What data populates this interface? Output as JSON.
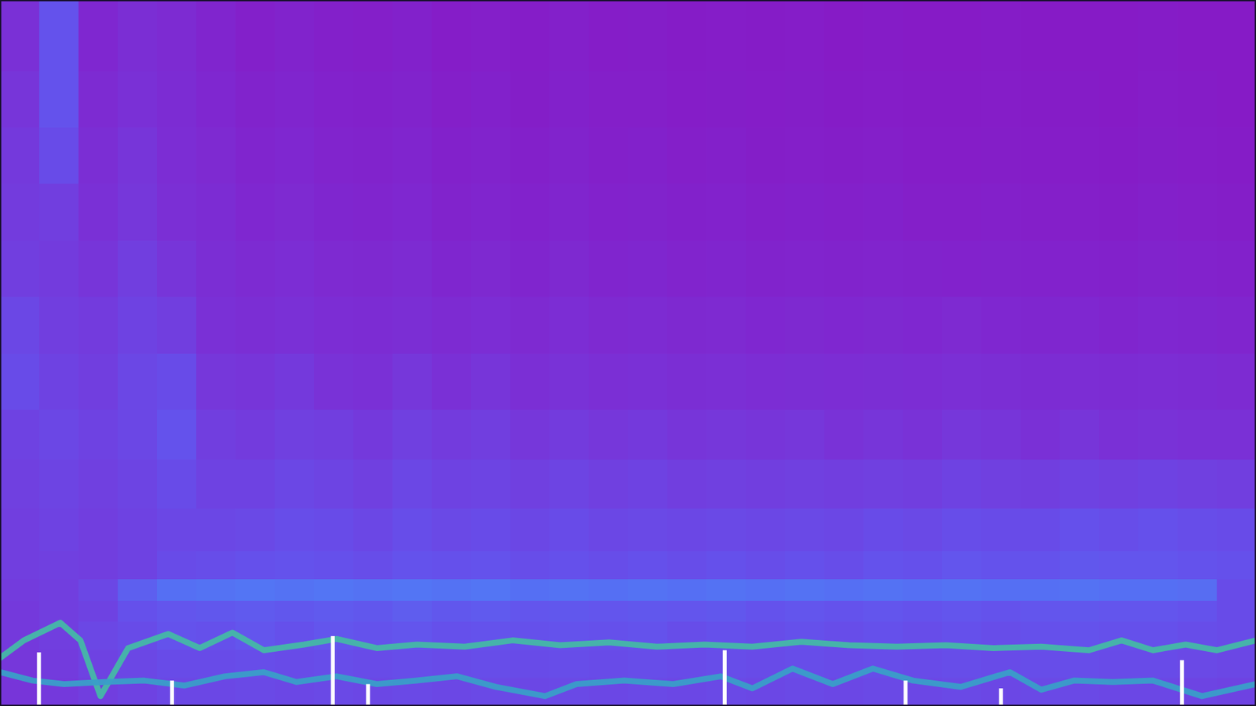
{
  "chart_data": {
    "type": "spectrogram",
    "xlim": [
      0,
      100
    ],
    "ylim": [
      0,
      100
    ],
    "zlim": [
      0,
      1
    ],
    "tick_labels": false,
    "x_bins": [
      0,
      3.125,
      6.25,
      9.375,
      12.5,
      15.625,
      18.75,
      21.875,
      25,
      28.125,
      31.25,
      34.375,
      37.5,
      40.625,
      43.75,
      46.875,
      50,
      53.125,
      56.25,
      59.375,
      62.5,
      65.625,
      68.75,
      71.875,
      75,
      78.125,
      81.25,
      84.375,
      87.5,
      90.625,
      93.75,
      96.875,
      100
    ],
    "y_bins": [
      0,
      4,
      8,
      12,
      15,
      18,
      22,
      28,
      35,
      42,
      50,
      58,
      66,
      74,
      82,
      90,
      100
    ],
    "cells": [
      [
        0.32,
        0.34,
        0.36,
        0.38,
        0.4,
        0.4,
        0.41,
        0.4,
        0.41,
        0.4,
        0.41,
        0.4,
        0.41,
        0.4,
        0.41,
        0.4,
        0.41,
        0.4,
        0.41,
        0.4,
        0.41,
        0.4,
        0.41,
        0.4,
        0.41,
        0.4,
        0.41,
        0.41,
        0.4,
        0.4,
        0.39,
        0.38
      ],
      [
        0.33,
        0.35,
        0.38,
        0.4,
        0.42,
        0.42,
        0.43,
        0.42,
        0.43,
        0.42,
        0.43,
        0.42,
        0.43,
        0.42,
        0.43,
        0.42,
        0.43,
        0.42,
        0.43,
        0.42,
        0.43,
        0.42,
        0.43,
        0.42,
        0.43,
        0.42,
        0.43,
        0.43,
        0.42,
        0.42,
        0.41,
        0.4
      ],
      [
        0.34,
        0.36,
        0.4,
        0.42,
        0.45,
        0.44,
        0.46,
        0.44,
        0.46,
        0.45,
        0.46,
        0.44,
        0.45,
        0.44,
        0.45,
        0.44,
        0.45,
        0.43,
        0.44,
        0.43,
        0.44,
        0.43,
        0.44,
        0.43,
        0.44,
        0.43,
        0.44,
        0.45,
        0.44,
        0.44,
        0.43,
        0.42
      ],
      [
        0.34,
        0.36,
        0.38,
        0.44,
        0.46,
        0.47,
        0.48,
        0.47,
        0.48,
        0.47,
        0.49,
        0.47,
        0.48,
        0.46,
        0.47,
        0.46,
        0.47,
        0.46,
        0.47,
        0.45,
        0.46,
        0.45,
        0.46,
        0.45,
        0.46,
        0.45,
        0.46,
        0.47,
        0.46,
        0.46,
        0.45,
        0.42
      ],
      [
        0.35,
        0.36,
        0.4,
        0.5,
        0.56,
        0.57,
        0.58,
        0.57,
        0.58,
        0.57,
        0.58,
        0.57,
        0.58,
        0.56,
        0.57,
        0.56,
        0.57,
        0.56,
        0.57,
        0.56,
        0.57,
        0.56,
        0.57,
        0.56,
        0.57,
        0.56,
        0.56,
        0.57,
        0.56,
        0.56,
        0.55,
        0.42
      ],
      [
        0.36,
        0.37,
        0.36,
        0.38,
        0.42,
        0.43,
        0.44,
        0.45,
        0.44,
        0.43,
        0.45,
        0.44,
        0.45,
        0.43,
        0.44,
        0.43,
        0.44,
        0.43,
        0.44,
        0.43,
        0.44,
        0.43,
        0.45,
        0.44,
        0.46,
        0.45,
        0.45,
        0.47,
        0.46,
        0.46,
        0.45,
        0.44
      ],
      [
        0.36,
        0.38,
        0.36,
        0.38,
        0.4,
        0.4,
        0.41,
        0.43,
        0.42,
        0.4,
        0.43,
        0.41,
        0.42,
        0.4,
        0.42,
        0.4,
        0.41,
        0.4,
        0.41,
        0.4,
        0.41,
        0.4,
        0.42,
        0.41,
        0.43,
        0.42,
        0.42,
        0.44,
        0.43,
        0.44,
        0.43,
        0.42
      ],
      [
        0.37,
        0.39,
        0.37,
        0.39,
        0.42,
        0.38,
        0.38,
        0.4,
        0.39,
        0.37,
        0.4,
        0.38,
        0.39,
        0.37,
        0.39,
        0.37,
        0.38,
        0.36,
        0.37,
        0.36,
        0.37,
        0.36,
        0.37,
        0.36,
        0.38,
        0.37,
        0.36,
        0.38,
        0.37,
        0.38,
        0.37,
        0.36
      ],
      [
        0.38,
        0.4,
        0.38,
        0.4,
        0.45,
        0.36,
        0.35,
        0.37,
        0.36,
        0.34,
        0.37,
        0.35,
        0.36,
        0.33,
        0.35,
        0.33,
        0.34,
        0.32,
        0.33,
        0.32,
        0.33,
        0.31,
        0.32,
        0.31,
        0.33,
        0.32,
        0.3,
        0.32,
        0.3,
        0.31,
        0.3,
        0.3
      ],
      [
        0.42,
        0.38,
        0.36,
        0.4,
        0.42,
        0.33,
        0.32,
        0.34,
        0.31,
        0.3,
        0.33,
        0.3,
        0.32,
        0.29,
        0.31,
        0.29,
        0.3,
        0.28,
        0.29,
        0.27,
        0.28,
        0.27,
        0.28,
        0.27,
        0.29,
        0.28,
        0.26,
        0.27,
        0.26,
        0.27,
        0.26,
        0.25
      ],
      [
        0.4,
        0.36,
        0.35,
        0.38,
        0.36,
        0.3,
        0.28,
        0.3,
        0.27,
        0.26,
        0.28,
        0.25,
        0.27,
        0.24,
        0.27,
        0.24,
        0.25,
        0.23,
        0.24,
        0.22,
        0.23,
        0.22,
        0.23,
        0.22,
        0.24,
        0.22,
        0.21,
        0.22,
        0.2,
        0.22,
        0.21,
        0.2
      ],
      [
        0.36,
        0.35,
        0.32,
        0.36,
        0.32,
        0.28,
        0.25,
        0.27,
        0.24,
        0.23,
        0.25,
        0.21,
        0.23,
        0.2,
        0.23,
        0.2,
        0.21,
        0.19,
        0.2,
        0.18,
        0.19,
        0.18,
        0.19,
        0.18,
        0.17,
        0.18,
        0.17,
        0.17,
        0.16,
        0.18,
        0.17,
        0.16
      ],
      [
        0.35,
        0.36,
        0.3,
        0.33,
        0.29,
        0.26,
        0.22,
        0.24,
        0.21,
        0.2,
        0.22,
        0.18,
        0.2,
        0.17,
        0.2,
        0.17,
        0.18,
        0.16,
        0.17,
        0.15,
        0.16,
        0.15,
        0.16,
        0.14,
        0.14,
        0.15,
        0.14,
        0.14,
        0.13,
        0.15,
        0.14,
        0.13
      ],
      [
        0.34,
        0.42,
        0.28,
        0.32,
        0.27,
        0.24,
        0.2,
        0.22,
        0.19,
        0.18,
        0.2,
        0.16,
        0.18,
        0.15,
        0.18,
        0.15,
        0.16,
        0.14,
        0.15,
        0.13,
        0.14,
        0.13,
        0.14,
        0.12,
        0.12,
        0.13,
        0.12,
        0.12,
        0.11,
        0.13,
        0.12,
        0.11
      ],
      [
        0.32,
        0.45,
        0.25,
        0.3,
        0.26,
        0.22,
        0.18,
        0.2,
        0.17,
        0.16,
        0.18,
        0.14,
        0.16,
        0.13,
        0.16,
        0.14,
        0.14,
        0.12,
        0.13,
        0.12,
        0.13,
        0.11,
        0.12,
        0.11,
        0.11,
        0.12,
        0.11,
        0.11,
        0.1,
        0.12,
        0.11,
        0.1
      ],
      [
        0.3,
        0.45,
        0.22,
        0.28,
        0.25,
        0.2,
        0.15,
        0.18,
        0.15,
        0.14,
        0.16,
        0.12,
        0.14,
        0.12,
        0.15,
        0.12,
        0.13,
        0.11,
        0.12,
        0.11,
        0.12,
        0.1,
        0.11,
        0.1,
        0.1,
        0.11,
        0.1,
        0.1,
        0.1,
        0.11,
        0.1,
        0.1
      ]
    ],
    "series": [
      {
        "type": "line",
        "color": "#45b8a6",
        "x": [
          0,
          1.9,
          4.8,
          6.4,
          8.0,
          10.2,
          13.4,
          15.9,
          18.5,
          21.0,
          24.2,
          26.8,
          30.0,
          33.2,
          37.0,
          40.8,
          44.6,
          48.5,
          52.3,
          56.1,
          59.9,
          63.8,
          67.6,
          71.4,
          75.3,
          79.1,
          82.9,
          86.7,
          89.3,
          91.8,
          94.4,
          96.9,
          100
        ],
        "values": [
          6.8,
          9.3,
          11.8,
          9.3,
          1.4,
          8.2,
          10.2,
          8.2,
          10.4,
          7.9,
          8.7,
          9.5,
          8.2,
          8.7,
          8.4,
          9.3,
          8.6,
          9.0,
          8.4,
          8.7,
          8.4,
          9.1,
          8.6,
          8.4,
          8.6,
          8.2,
          8.4,
          7.9,
          9.3,
          7.9,
          8.7,
          7.9,
          9.3
        ]
      },
      {
        "type": "line",
        "color": "#3a9ec8",
        "x": [
          0,
          2.6,
          5.1,
          8.3,
          11.5,
          14.7,
          17.9,
          21.0,
          23.6,
          26.8,
          30.0,
          33.2,
          36.4,
          39.5,
          43.4,
          45.9,
          49.7,
          53.6,
          57.4,
          59.9,
          63.1,
          66.3,
          69.5,
          72.7,
          76.5,
          80.4,
          82.9,
          85.5,
          88.6,
          91.8,
          95.7,
          100
        ],
        "values": [
          4.8,
          3.6,
          3.1,
          3.4,
          3.6,
          2.9,
          4.2,
          4.8,
          3.4,
          4.2,
          3.1,
          3.6,
          4.2,
          2.7,
          1.4,
          3.1,
          3.6,
          3.1,
          4.2,
          2.5,
          5.3,
          3.1,
          5.3,
          3.6,
          2.7,
          4.8,
          2.3,
          3.6,
          3.4,
          3.6,
          1.4,
          3.1
        ]
      },
      {
        "type": "bar",
        "color": "#ffffff",
        "x": [
          3.1,
          13.7,
          26.5,
          29.3,
          57.7,
          72.1,
          79.7,
          94.1
        ],
        "values": [
          7.6,
          3.6,
          9.9,
          3.1,
          7.9,
          3.6,
          2.5,
          6.5
        ]
      }
    ]
  }
}
